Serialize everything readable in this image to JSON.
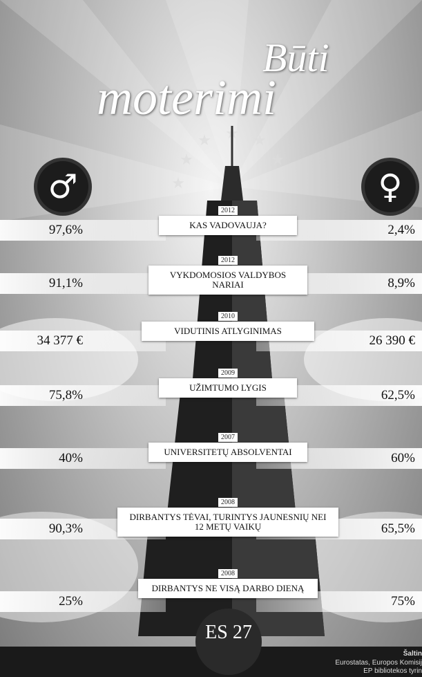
{
  "title": {
    "line1": "Būti",
    "line2": "moterimi"
  },
  "symbols": {
    "male": "♂",
    "female": "♀"
  },
  "rows": [
    {
      "year": "2012",
      "label": "KAS VADOVAUJA?",
      "male": "97,6%",
      "female": "2,4%"
    },
    {
      "year": "2012",
      "label": "VYKDOMOSIOS VALDYBOS NARIAI",
      "male": "91,1%",
      "female": "8,9%"
    },
    {
      "year": "2010",
      "label": "VIDUTINIS ATLYGINIMAS",
      "male": "34 377 €",
      "female": "26 390 €"
    },
    {
      "year": "2009",
      "label": "UŽIMTUMO LYGIS",
      "male": "75,8%",
      "female": "62,5%"
    },
    {
      "year": "2007",
      "label": "UNIVERSITETŲ ABSOLVENTAI",
      "male": "40%",
      "female": "60%"
    },
    {
      "year": "2008",
      "label": "DIRBANTYS TĖVAI, TURINTYS JAUNESNIŲ NEI 12 METŲ VAIKŲ",
      "male": "90,3%",
      "female": "65,5%"
    },
    {
      "year": "2008",
      "label": "DIRBANTYS NE VISĄ DARBO DIENĄ",
      "male": "25%",
      "female": "75%"
    }
  ],
  "footer": {
    "region": "ES 27",
    "source_title": "Šaltin",
    "source_line1": "Eurostatas, Europos Komisij",
    "source_line2": "EP bibliotekos tyrin"
  }
}
